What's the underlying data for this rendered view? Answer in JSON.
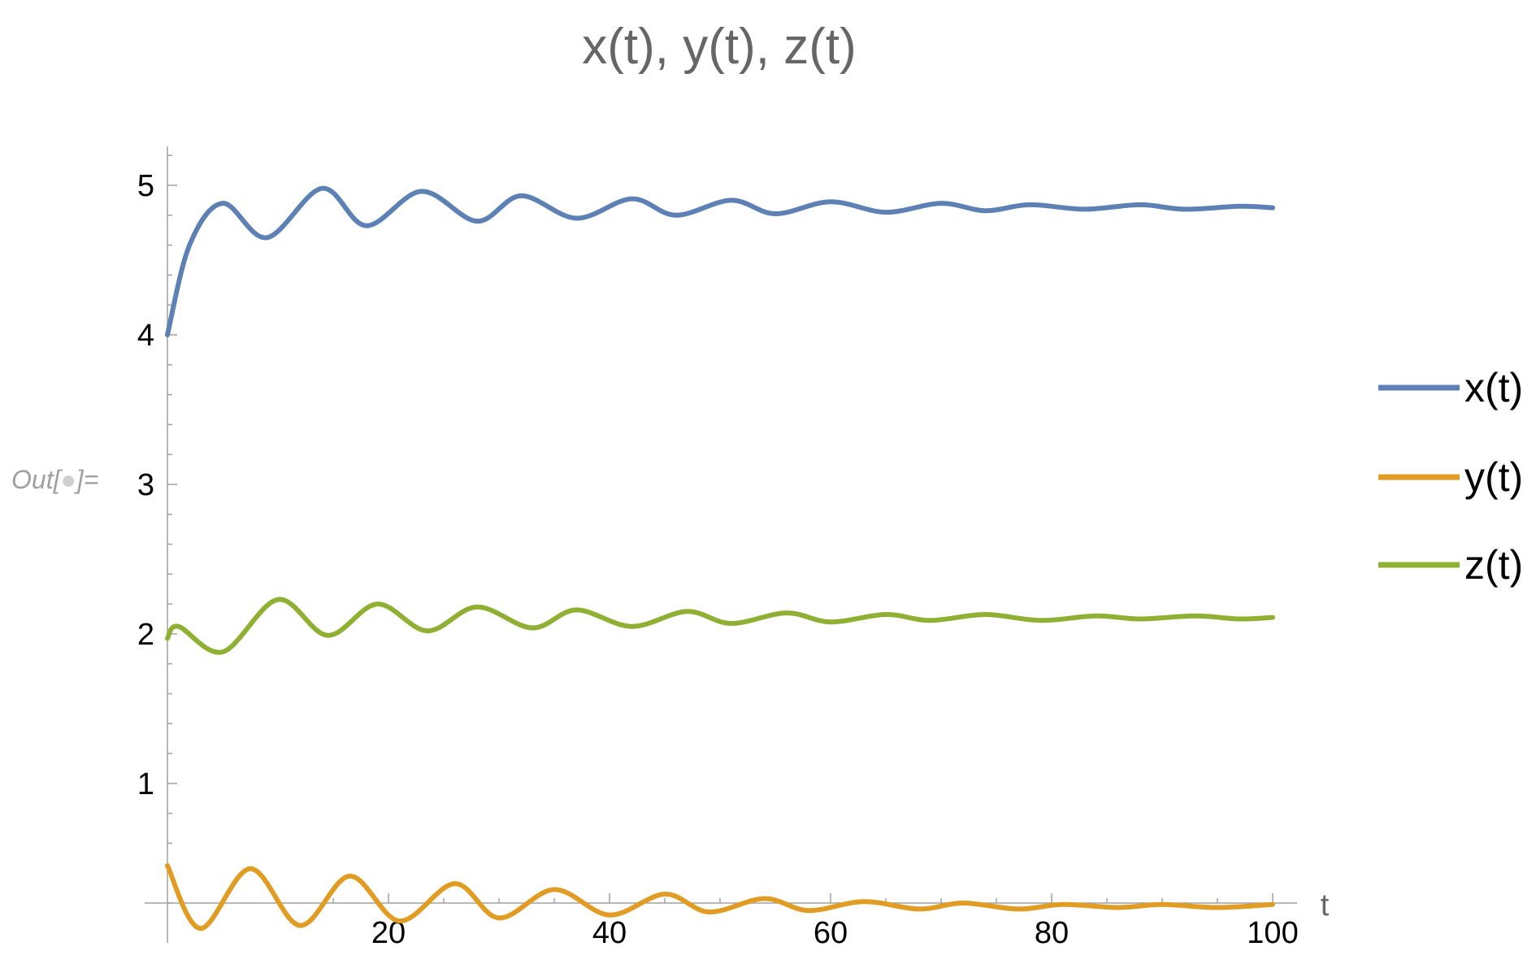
{
  "cell": {
    "out_label": "Out[",
    "out_label_end": "]="
  },
  "chart_data": {
    "type": "line",
    "title": "x(t), y(t), z(t)",
    "xlabel": "t",
    "ylabel": "",
    "xlim": [
      0,
      100
    ],
    "ylim": [
      0,
      5.25
    ],
    "x_origin_y": 0.2,
    "x_ticks": [
      20,
      40,
      60,
      80,
      100
    ],
    "y_ticks": [
      1,
      2,
      3,
      4,
      5
    ],
    "grid": false,
    "legend_position": "right",
    "series": [
      {
        "name": "x(t)",
        "color": "#5E81B5",
        "t": [
          0,
          2,
          5,
          9,
          14,
          18,
          23,
          28,
          32,
          37,
          42,
          46,
          51,
          55,
          60,
          65,
          70,
          74,
          78,
          83,
          88,
          92,
          97,
          100
        ],
        "values": [
          4.0,
          4.6,
          4.88,
          4.65,
          4.98,
          4.73,
          4.96,
          4.76,
          4.93,
          4.78,
          4.91,
          4.8,
          4.9,
          4.81,
          4.89,
          4.82,
          4.88,
          4.83,
          4.87,
          4.84,
          4.87,
          4.84,
          4.86,
          4.85
        ]
      },
      {
        "name": "y(t)",
        "color": "#E19C24",
        "t": [
          0,
          3,
          7.5,
          12,
          16.5,
          21,
          26,
          30,
          35,
          40,
          45,
          49,
          54,
          58,
          63,
          68,
          72,
          77,
          81,
          86,
          90,
          95,
          100
        ],
        "values": [
          0.45,
          0.03,
          0.43,
          0.05,
          0.38,
          0.08,
          0.33,
          0.1,
          0.29,
          0.12,
          0.26,
          0.14,
          0.23,
          0.15,
          0.21,
          0.16,
          0.2,
          0.16,
          0.19,
          0.17,
          0.19,
          0.17,
          0.19
        ]
      },
      {
        "name": "z(t)",
        "color": "#8FB032",
        "t": [
          0,
          1,
          5,
          10,
          14.5,
          19,
          23.5,
          28,
          33,
          37,
          42,
          47,
          51,
          56,
          60,
          65,
          69,
          74,
          79,
          84,
          88,
          93,
          97,
          100
        ],
        "values": [
          1.97,
          2.05,
          1.88,
          2.23,
          1.99,
          2.2,
          2.02,
          2.18,
          2.04,
          2.16,
          2.05,
          2.15,
          2.07,
          2.14,
          2.08,
          2.13,
          2.09,
          2.13,
          2.09,
          2.12,
          2.1,
          2.12,
          2.1,
          2.11
        ]
      }
    ]
  }
}
